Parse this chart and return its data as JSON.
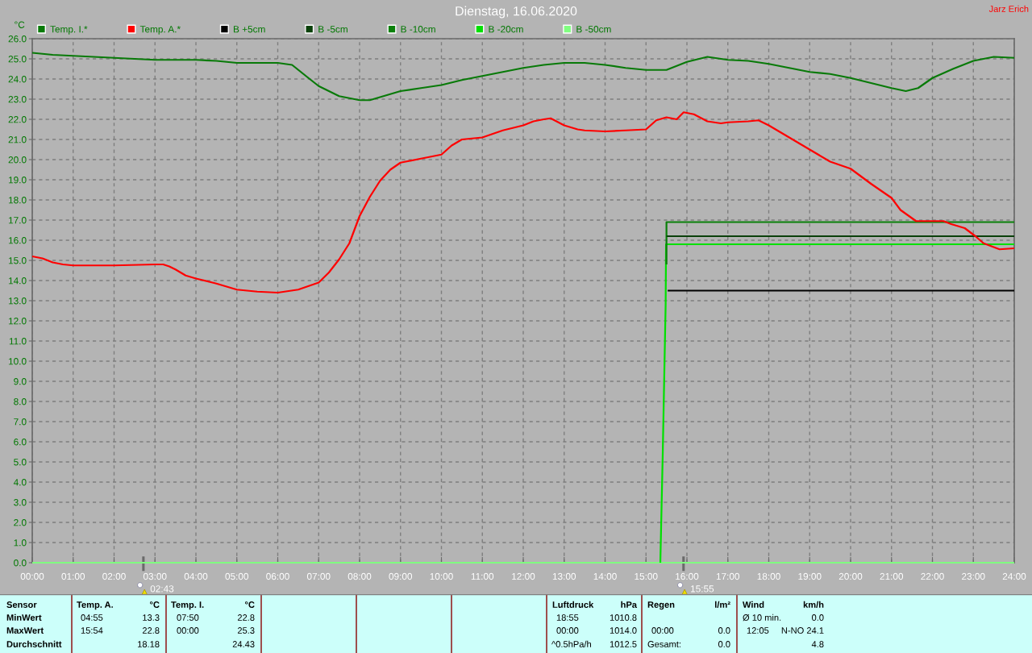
{
  "chart_data": [
    {
      "type": "line",
      "title": "Dienstag, 16.06.2020",
      "ylabel": "°C",
      "legend": "top",
      "grid": true,
      "xlim": [
        0,
        24
      ],
      "xticks": [
        {
          "value": 0,
          "label": "00:00"
        },
        {
          "value": 1,
          "label": "01:00"
        },
        {
          "value": 2,
          "label": "02:00"
        },
        {
          "value": 3,
          "label": "03:00"
        },
        {
          "value": 4,
          "label": "04:00"
        },
        {
          "value": 5,
          "label": "05:00"
        },
        {
          "value": 6,
          "label": "06:00"
        },
        {
          "value": 7,
          "label": "07:00"
        },
        {
          "value": 8,
          "label": "08:00"
        },
        {
          "value": 9,
          "label": "09:00"
        },
        {
          "value": 10,
          "label": "10:00"
        },
        {
          "value": 11,
          "label": "11:00"
        },
        {
          "value": 12,
          "label": "12:00"
        },
        {
          "value": 13,
          "label": "13:00"
        },
        {
          "value": 14,
          "label": "14:00"
        },
        {
          "value": 15,
          "label": "15:00"
        },
        {
          "value": 16,
          "label": "16:00"
        },
        {
          "value": 17,
          "label": "17:00"
        },
        {
          "value": 18,
          "label": "18:00"
        },
        {
          "value": 19,
          "label": "19:00"
        },
        {
          "value": 20,
          "label": "20:00"
        },
        {
          "value": 21,
          "label": "21:00"
        },
        {
          "value": 22,
          "label": "22:00"
        },
        {
          "value": 23,
          "label": "23:00"
        },
        {
          "value": 24,
          "label": "24:00"
        }
      ],
      "ylim": [
        0,
        26
      ],
      "yticks": [
        {
          "value": 0,
          "label": "0.0"
        },
        {
          "value": 1,
          "label": "1.0"
        },
        {
          "value": 2,
          "label": "2.0"
        },
        {
          "value": 3,
          "label": "3.0"
        },
        {
          "value": 4,
          "label": "4.0"
        },
        {
          "value": 5,
          "label": "5.0"
        },
        {
          "value": 6,
          "label": "6.0"
        },
        {
          "value": 7,
          "label": "7.0"
        },
        {
          "value": 8,
          "label": "8.0"
        },
        {
          "value": 9,
          "label": "9.0"
        },
        {
          "value": 10,
          "label": "10.0"
        },
        {
          "value": 11,
          "label": "11.0"
        },
        {
          "value": 12,
          "label": "12.0"
        },
        {
          "value": 13,
          "label": "13.0"
        },
        {
          "value": 14,
          "label": "14.0"
        },
        {
          "value": 15,
          "label": "15.0"
        },
        {
          "value": 16,
          "label": "16.0"
        },
        {
          "value": 17,
          "label": "17.0"
        },
        {
          "value": 18,
          "label": "18.0"
        },
        {
          "value": 19,
          "label": "19.0"
        },
        {
          "value": 20,
          "label": "20.0"
        },
        {
          "value": 21,
          "label": "21.0"
        },
        {
          "value": 22,
          "label": "22.0"
        },
        {
          "value": 23,
          "label": "23.0"
        },
        {
          "value": 24,
          "label": "24.0"
        },
        {
          "value": 25,
          "label": "25.0"
        },
        {
          "value": 26,
          "label": "26.0"
        }
      ],
      "series": [
        {
          "name": "Temp. I.*",
          "color": "#087a08",
          "x": [
            0,
            0.5,
            1,
            2,
            3,
            4,
            4.5,
            5,
            6,
            6.35,
            6.75,
            7,
            7.5,
            8,
            8.25,
            8.5,
            9,
            9.5,
            10,
            10.5,
            11,
            11.5,
            12,
            12.5,
            13,
            13.5,
            14,
            14.5,
            15,
            15.5,
            16,
            16.5,
            17,
            17.5,
            18,
            18.5,
            19,
            19.5,
            20,
            20.5,
            21,
            21.35,
            21.65,
            22,
            22.5,
            23,
            23.5,
            24
          ],
          "values": [
            25.3,
            25.2,
            25.15,
            25.05,
            24.95,
            24.95,
            24.9,
            24.8,
            24.8,
            24.7,
            24.05,
            23.65,
            23.15,
            22.95,
            22.95,
            23.1,
            23.4,
            23.55,
            23.7,
            23.95,
            24.15,
            24.35,
            24.55,
            24.7,
            24.8,
            24.8,
            24.7,
            24.55,
            24.45,
            24.45,
            24.85,
            25.1,
            24.95,
            24.9,
            24.75,
            24.55,
            24.35,
            24.25,
            24.05,
            23.8,
            23.55,
            23.4,
            23.55,
            24.05,
            24.5,
            24.9,
            25.1,
            25.05
          ]
        },
        {
          "name": "Temp. A.*",
          "color": "#ff0000",
          "x": [
            0,
            0.25,
            0.5,
            0.75,
            1,
            2,
            3,
            3.2,
            3.35,
            3.5,
            3.75,
            4,
            4.5,
            5,
            5.5,
            6,
            6.5,
            7,
            7.25,
            7.5,
            7.75,
            8,
            8.25,
            8.5,
            8.75,
            9,
            9.5,
            10,
            10.25,
            10.5,
            11,
            11.5,
            12,
            12.25,
            12.5,
            12.67,
            13,
            13.33,
            13.5,
            14,
            14.5,
            15,
            15.25,
            15.5,
            15.75,
            15.92,
            16.17,
            16.5,
            16.83,
            17,
            17.5,
            17.75,
            18,
            18.5,
            19,
            19.5,
            20,
            20.5,
            21,
            21.22,
            21.6,
            22.27,
            22.46,
            22.79,
            23.05,
            23.25,
            23.64,
            24
          ],
          "values": [
            15.2,
            15.1,
            14.9,
            14.8,
            14.75,
            14.75,
            14.8,
            14.8,
            14.7,
            14.55,
            14.25,
            14.1,
            13.85,
            13.55,
            13.45,
            13.4,
            13.55,
            13.9,
            14.4,
            15.05,
            15.85,
            17.2,
            18.15,
            18.95,
            19.5,
            19.85,
            20.05,
            20.25,
            20.7,
            21.0,
            21.1,
            21.45,
            21.7,
            21.9,
            22.0,
            22.05,
            21.7,
            21.5,
            21.45,
            21.4,
            21.45,
            21.5,
            21.95,
            22.1,
            22.0,
            22.35,
            22.25,
            21.9,
            21.8,
            21.85,
            21.9,
            21.95,
            21.7,
            21.1,
            20.5,
            19.9,
            19.55,
            18.8,
            18.1,
            17.5,
            16.95,
            16.95,
            16.8,
            16.6,
            16.2,
            15.85,
            15.55,
            15.6
          ]
        },
        {
          "name": "B +5cm",
          "color": "#000000",
          "x": [
            15.53,
            24
          ],
          "values": [
            13.5,
            13.5
          ]
        },
        {
          "name": "B -5cm",
          "color": "#0a400a",
          "x": [
            15.5,
            24
          ],
          "values": [
            16.2,
            16.2
          ]
        },
        {
          "name": "B -10cm",
          "color": "#0a800a",
          "x": [
            15.5,
            15.5,
            24
          ],
          "values": [
            14.8,
            16.9,
            16.9
          ]
        },
        {
          "name": "B -20cm",
          "color": "#00e000",
          "x": [
            15.35,
            15.41,
            15.48,
            15.49,
            24
          ],
          "values": [
            0,
            5.5,
            12.8,
            15.8,
            15.8
          ]
        },
        {
          "name": "B -50cm",
          "color": "#80ff80",
          "x": [
            0,
            24
          ],
          "values": [
            0,
            0
          ]
        }
      ],
      "annotations": [
        "Jarz Erich",
        {
          "text": "02:43",
          "x": 2.7167,
          "y": 0
        },
        {
          "text": "15:55",
          "x": 15.9167,
          "y": 0
        }
      ]
    },
    {
      "type": "other",
      "annotations": [
        "Sensor",
        "Temp. A.",
        "°C",
        "Temp. I.",
        "°C",
        "Luftdruck",
        "hPa",
        "Regen",
        "l/m²",
        "Wind",
        "km/h",
        "MinWert",
        "04:55",
        "13.3",
        "07:50",
        "22.8",
        "18:55",
        "1010.8",
        "Ø 10 min.",
        "0.0",
        "MaxWert",
        "15:54",
        "22.8",
        "00:00",
        "25.3",
        "00:00",
        "1014.0",
        "00:00",
        "0.0",
        "12:05",
        "N-NO 24.1",
        "Durchschnitt",
        "18.18",
        "24.43",
        "^0.5hPa/h",
        "1012.5",
        "Gesamt:",
        "0.0",
        "4.8"
      ]
    }
  ]
}
